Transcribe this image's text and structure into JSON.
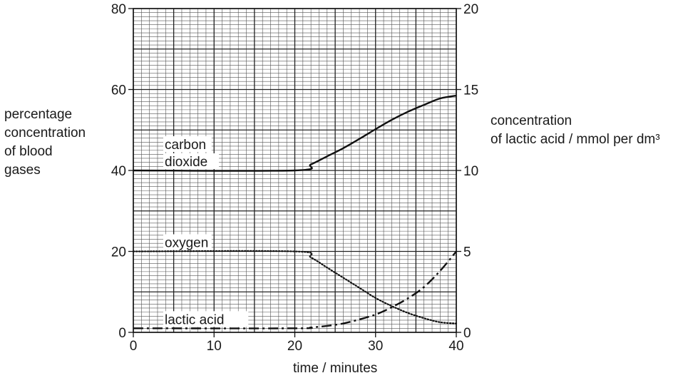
{
  "chart_data": {
    "type": "line",
    "title": "",
    "xlabel": "time / minutes",
    "ylabel_left": "percentage\nconcentration\nof blood\ngases",
    "ylabel_right": "concentration\nof lactic acid / mmol per dm³",
    "xlim": [
      0,
      40
    ],
    "ylim_left": [
      0,
      80
    ],
    "ylim_right": [
      0,
      20
    ],
    "x_ticks": [
      0,
      10,
      20,
      30,
      40
    ],
    "y_ticks_left": [
      0,
      20,
      40,
      60,
      80
    ],
    "y_ticks_right": [
      0,
      5,
      10,
      15,
      20
    ],
    "grid": true,
    "series": [
      {
        "name": "carbon dioxide",
        "axis": "left",
        "style": "solid",
        "x": [
          0,
          20,
          22,
          24,
          26,
          28,
          30,
          32,
          34,
          36,
          38,
          40
        ],
        "y": [
          40,
          40,
          41.5,
          43.5,
          45.5,
          47.8,
          50.2,
          52.5,
          54.5,
          56.2,
          57.8,
          58.5
        ]
      },
      {
        "name": "oxygen",
        "axis": "left",
        "style": "dotted",
        "x": [
          0,
          20,
          22,
          24,
          26,
          28,
          30,
          32,
          34,
          36,
          38,
          40
        ],
        "y": [
          20,
          20,
          18.5,
          16,
          13.5,
          11,
          8.5,
          6.5,
          4.8,
          3.5,
          2.5,
          2.2
        ]
      },
      {
        "name": "lactic acid",
        "axis": "right",
        "style": "dashdot",
        "x": [
          0,
          20,
          22,
          24,
          26,
          28,
          30,
          32,
          34,
          36,
          38,
          40
        ],
        "y": [
          0.25,
          0.25,
          0.3,
          0.4,
          0.55,
          0.8,
          1.1,
          1.55,
          2.1,
          2.8,
          3.8,
          5.0
        ]
      }
    ],
    "annotations": [
      {
        "text": "carbon\ndioxide",
        "series": "carbon dioxide"
      },
      {
        "text": "oxygen",
        "series": "oxygen"
      },
      {
        "text": "lactic acid",
        "series": "lactic acid"
      }
    ]
  }
}
